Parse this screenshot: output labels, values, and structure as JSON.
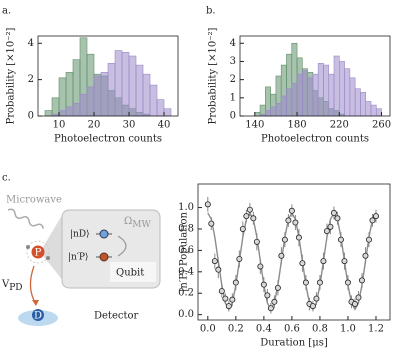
{
  "panels": [
    "a.",
    "b.",
    "c."
  ],
  "chart_data": [
    {
      "type": "histogram",
      "xlabel": "Photoelectron counts",
      "ylabel": "Probability [×10⁻²]",
      "bins": [
        6,
        8,
        10,
        12,
        14,
        16,
        18,
        20,
        22,
        24,
        26,
        28,
        30,
        32,
        34,
        36,
        38,
        40,
        42
      ],
      "series": [
        {
          "color": "#5f8f6a",
          "values": [
            0.3,
            1.0,
            2.1,
            2.4,
            3.1,
            4.3,
            3.4,
            2.3,
            2.2,
            1.4,
            1.0,
            0.6,
            0.4,
            0.2,
            0.1,
            0,
            0,
            0
          ]
        },
        {
          "color": "#9a88c9",
          "values": [
            0,
            0.1,
            0.3,
            0.5,
            0.7,
            1.2,
            1.6,
            2.2,
            2.4,
            2.9,
            3.6,
            3.5,
            3.3,
            2.8,
            2.3,
            1.7,
            0.9,
            0.4
          ]
        }
      ],
      "xlim": [
        4,
        44
      ],
      "ylim": [
        0,
        4.4
      ],
      "xticks": [
        10,
        20,
        30,
        40
      ],
      "yticks": [
        0,
        2,
        4
      ]
    },
    {
      "type": "histogram",
      "xlabel": "Photoelectron counts",
      "ylabel": "Probability [×10⁻²]",
      "bins": [
        140,
        145,
        150,
        155,
        160,
        165,
        170,
        175,
        180,
        185,
        190,
        195,
        200,
        205,
        210,
        215,
        220,
        225,
        230,
        235,
        240,
        245,
        250,
        255,
        260
      ],
      "series": [
        {
          "color": "#5f8f6a",
          "values": [
            0.2,
            0.6,
            1.6,
            1.2,
            2.2,
            2.8,
            3.4,
            4.0,
            3.2,
            2.6,
            2.4,
            1.4,
            1.0,
            0.8,
            0.4,
            0.3,
            0.1,
            0,
            0,
            0,
            0,
            0,
            0,
            0
          ]
        },
        {
          "color": "#9a88c9",
          "values": [
            0,
            0.1,
            0.3,
            0.5,
            0.7,
            1.1,
            1.5,
            1.8,
            2.3,
            2.5,
            2.1,
            2.3,
            2.9,
            2.8,
            2.3,
            3.3,
            3.0,
            2.6,
            2.1,
            1.5,
            1.3,
            0.8,
            0.6,
            0.4
          ]
        }
      ],
      "xlim": [
        126,
        268
      ],
      "ylim": [
        0,
        4.4
      ],
      "xticks": [
        140,
        180,
        220,
        260
      ],
      "yticks": [
        0,
        1,
        2,
        3,
        4
      ]
    },
    {
      "type": "scatter",
      "xlabel": "Duration [μs]",
      "ylabel": "|n′P⟩ Population",
      "x": [
        0,
        0.025,
        0.05,
        0.075,
        0.1,
        0.125,
        0.15,
        0.175,
        0.2,
        0.225,
        0.25,
        0.275,
        0.3,
        0.325,
        0.35,
        0.375,
        0.4,
        0.425,
        0.45,
        0.475,
        0.5,
        0.525,
        0.55,
        0.575,
        0.6,
        0.625,
        0.65,
        0.675,
        0.7,
        0.725,
        0.75,
        0.775,
        0.8,
        0.825,
        0.85,
        0.875,
        0.9,
        0.925,
        0.95,
        0.975,
        1.0,
        1.025,
        1.05,
        1.075,
        1.1,
        1.125,
        1.15,
        1.175,
        1.2
      ],
      "values": [
        1.03,
        0.85,
        0.5,
        0.42,
        0.22,
        0.15,
        0.08,
        0.14,
        0.3,
        0.52,
        0.8,
        0.92,
        0.98,
        0.9,
        0.68,
        0.45,
        0.28,
        0.18,
        0.06,
        0.12,
        0.25,
        0.55,
        0.7,
        0.88,
        0.97,
        0.86,
        0.72,
        0.48,
        0.3,
        0.1,
        0.08,
        0.15,
        0.3,
        0.5,
        0.78,
        0.82,
        0.95,
        0.9,
        0.7,
        0.5,
        0.3,
        0.12,
        0.1,
        0.16,
        0.32,
        0.55,
        0.7,
        0.88,
        0.92
      ],
      "errors": [
        0.07,
        0.06,
        0.07,
        0.08,
        0.06,
        0.05,
        0.05,
        0.06,
        0.07,
        0.08,
        0.07,
        0.06,
        0.06,
        0.06,
        0.08,
        0.07,
        0.07,
        0.06,
        0.05,
        0.06,
        0.07,
        0.08,
        0.07,
        0.06,
        0.06,
        0.07,
        0.08,
        0.08,
        0.07,
        0.06,
        0.05,
        0.06,
        0.07,
        0.08,
        0.07,
        0.07,
        0.06,
        0.06,
        0.07,
        0.08,
        0.07,
        0.06,
        0.05,
        0.06,
        0.07,
        0.08,
        0.07,
        0.06,
        0.06
      ],
      "fit": [
        0.95,
        0.89,
        0.725,
        0.5,
        0.275,
        0.11,
        0.05,
        0.11,
        0.275,
        0.5,
        0.725,
        0.89,
        0.95,
        0.89,
        0.725,
        0.5,
        0.275,
        0.11,
        0.05,
        0.11,
        0.275,
        0.5,
        0.725,
        0.89,
        0.95,
        0.89,
        0.725,
        0.5,
        0.275,
        0.11,
        0.05,
        0.11,
        0.275,
        0.5,
        0.725,
        0.89,
        0.95,
        0.89,
        0.725,
        0.5,
        0.275,
        0.11,
        0.05,
        0.11,
        0.275,
        0.5,
        0.725,
        0.89,
        0.95
      ],
      "point_color": "#d9d9d9",
      "fit_color": "#8c8c8c",
      "xlim": [
        -0.07,
        1.3
      ],
      "ylim": [
        -0.05,
        1.22
      ],
      "xticks": [
        {
          "value": 0,
          "label": "0.0"
        },
        0.2,
        0.4,
        0.6,
        0.8,
        {
          "value": 1,
          "label": "1.0"
        },
        1.2
      ],
      "yticks": [
        {
          "value": 0,
          "label": "0.0"
        },
        0.2,
        0.4,
        0.6,
        0.8,
        {
          "value": 1,
          "label": "1.0"
        }
      ]
    }
  ],
  "diagram": {
    "microwave": "Microwave",
    "atom": "P",
    "state_d": "|nD⟩",
    "state_p": "|n′P⟩",
    "omega": {
      "main": "Ω",
      "sub": "MW"
    },
    "qubit": "Qubit",
    "vpd": {
      "main": "V",
      "sub": "PD"
    },
    "detector_symbol": "D",
    "detector": "Detector"
  }
}
